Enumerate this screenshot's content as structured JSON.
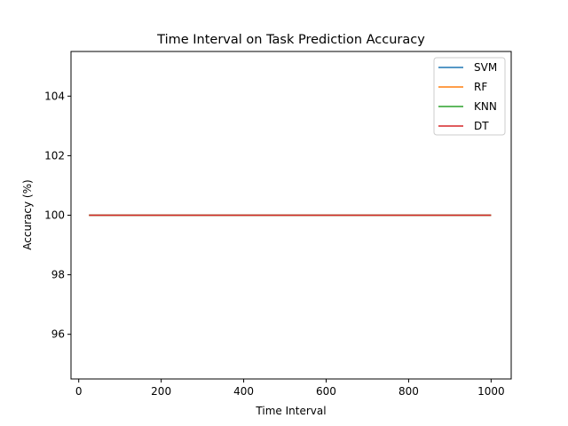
{
  "chart_data": {
    "type": "line",
    "title": "Time Interval on Task Prediction Accuracy",
    "xlabel": "Time Interval",
    "ylabel": "Accuracy (%)",
    "xlim": [
      -18.75,
      1048.75
    ],
    "ylim": [
      94.5,
      105.5
    ],
    "xticks": [
      0,
      200,
      400,
      600,
      800,
      1000
    ],
    "yticks": [
      96,
      98,
      100,
      102,
      104
    ],
    "legend_position": "top-right",
    "grid": false,
    "x": [
      25,
      1000
    ],
    "series": [
      {
        "name": "SVM",
        "color": "#1f77b4",
        "values": [
          100,
          100
        ]
      },
      {
        "name": "RF",
        "color": "#ff7f0e",
        "values": [
          100,
          100
        ]
      },
      {
        "name": "KNN",
        "color": "#2ca02c",
        "values": [
          100,
          100
        ]
      },
      {
        "name": "DT",
        "color": "#d62728",
        "values": [
          100,
          100
        ]
      }
    ]
  }
}
